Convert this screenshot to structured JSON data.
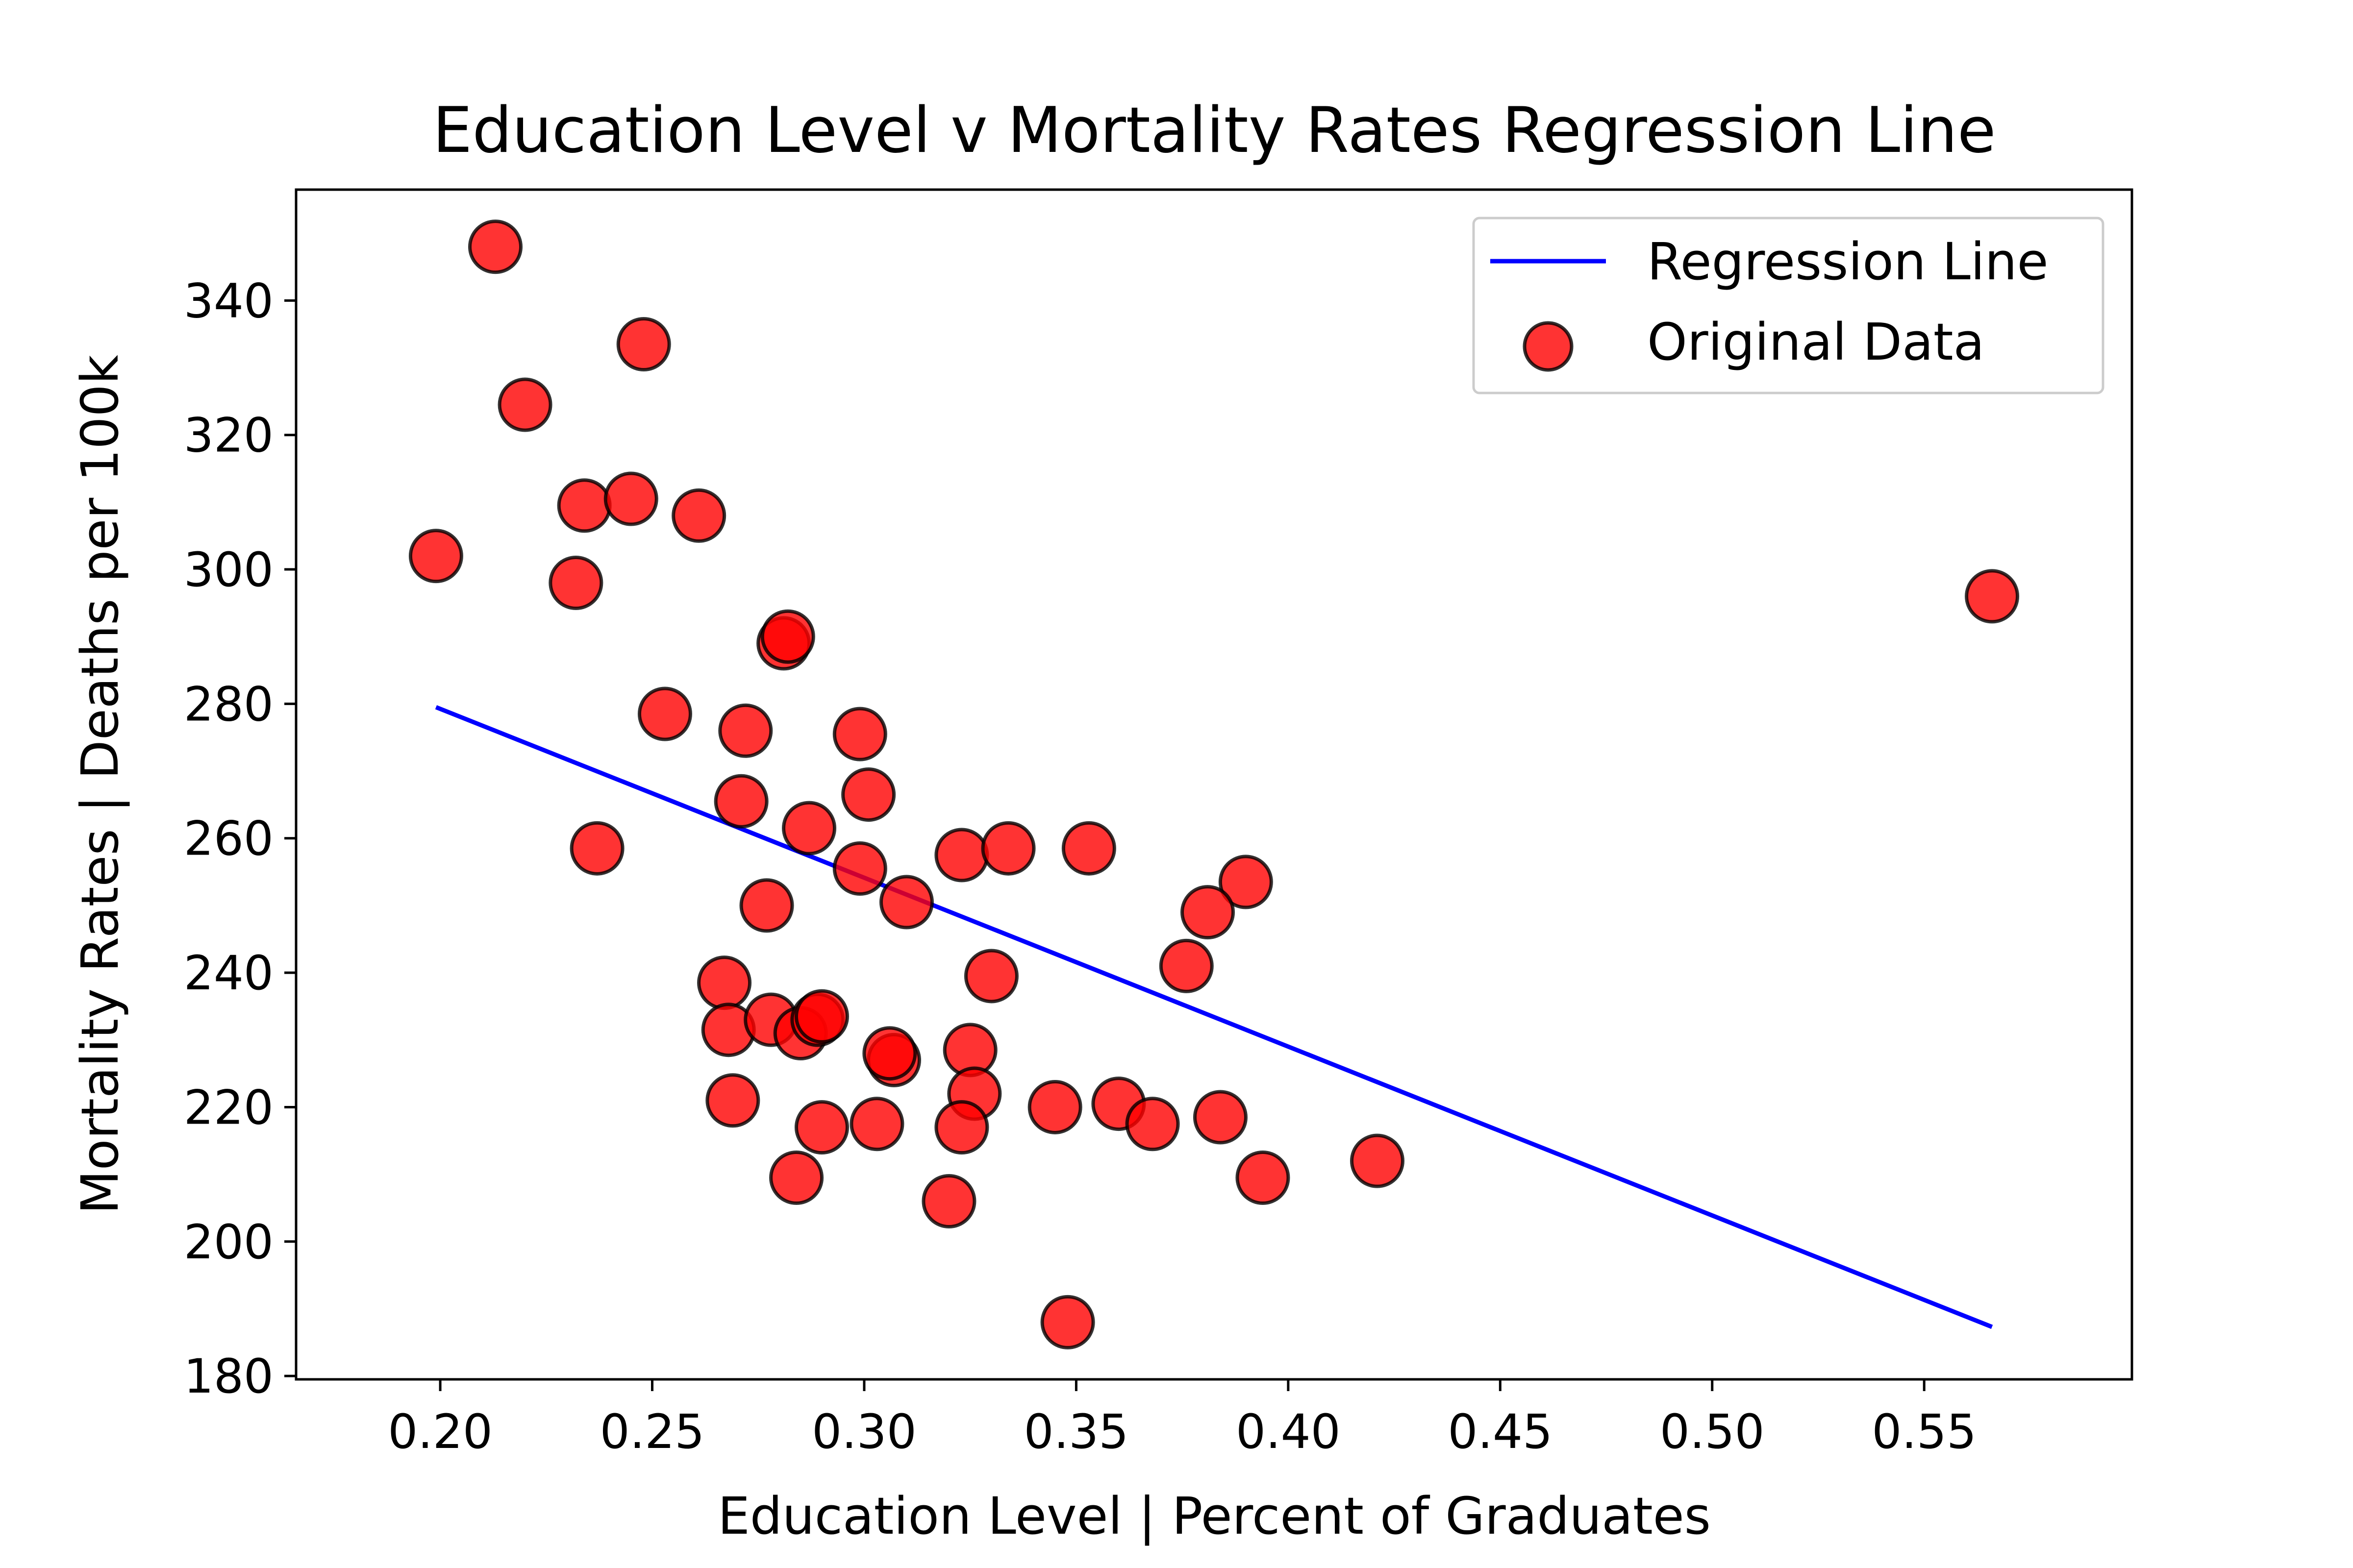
{
  "chart_data": {
    "type": "scatter",
    "title": "Education Level v Mortality Rates Regression Line",
    "xlabel": "Education Level | Percent of Graduates",
    "ylabel": "Mortality Rates | Deaths per 100k",
    "xlim": [
      0.166,
      0.599
    ],
    "ylim": [
      179.5,
      356.5
    ],
    "x_ticks": [
      0.2,
      0.25,
      0.3,
      0.35,
      0.4,
      0.45,
      0.5,
      0.55
    ],
    "x_tick_labels": [
      "0.20",
      "0.25",
      "0.30",
      "0.35",
      "0.40",
      "0.45",
      "0.50",
      "0.55"
    ],
    "y_ticks": [
      180,
      200,
      220,
      240,
      260,
      280,
      300,
      320,
      340
    ],
    "y_tick_labels": [
      "180",
      "200",
      "220",
      "240",
      "260",
      "280",
      "300",
      "320",
      "340"
    ],
    "grid": false,
    "legend_position": "top-right",
    "colors": {
      "regression_line": "#0000ff",
      "points_fill": "#ff0000",
      "points_edge": "#000000"
    },
    "series": [
      {
        "name": "Regression Line",
        "kind": "line",
        "x": [
          0.199,
          0.566
        ],
        "y": [
          279.5,
          187.3
        ]
      },
      {
        "name": "Original Data",
        "kind": "scatter",
        "x": [
          0.213,
          0.248,
          0.22,
          0.234,
          0.245,
          0.261,
          0.199,
          0.232,
          0.281,
          0.282,
          0.253,
          0.272,
          0.299,
          0.271,
          0.301,
          0.287,
          0.237,
          0.299,
          0.323,
          0.334,
          0.353,
          0.31,
          0.277,
          0.39,
          0.381,
          0.33,
          0.376,
          0.267,
          0.268,
          0.278,
          0.285,
          0.289,
          0.29,
          0.307,
          0.306,
          0.325,
          0.326,
          0.269,
          0.345,
          0.36,
          0.368,
          0.384,
          0.29,
          0.303,
          0.323,
          0.394,
          0.421,
          0.284,
          0.32,
          0.348,
          0.566
        ],
        "y": [
          348,
          333.5,
          324.5,
          309.5,
          310.5,
          308,
          302,
          298,
          289,
          290,
          278.5,
          276,
          275.5,
          265.5,
          266.5,
          261.5,
          258.5,
          255.5,
          257.5,
          258.5,
          258.5,
          250.5,
          250,
          253.5,
          249,
          239.5,
          241,
          238.5,
          231.5,
          233,
          231,
          233,
          233.5,
          227,
          228,
          228.5,
          222,
          221,
          220,
          220.5,
          217.5,
          218.5,
          217,
          217.5,
          217,
          209.5,
          212,
          209.5,
          206,
          188,
          296
        ]
      }
    ]
  }
}
